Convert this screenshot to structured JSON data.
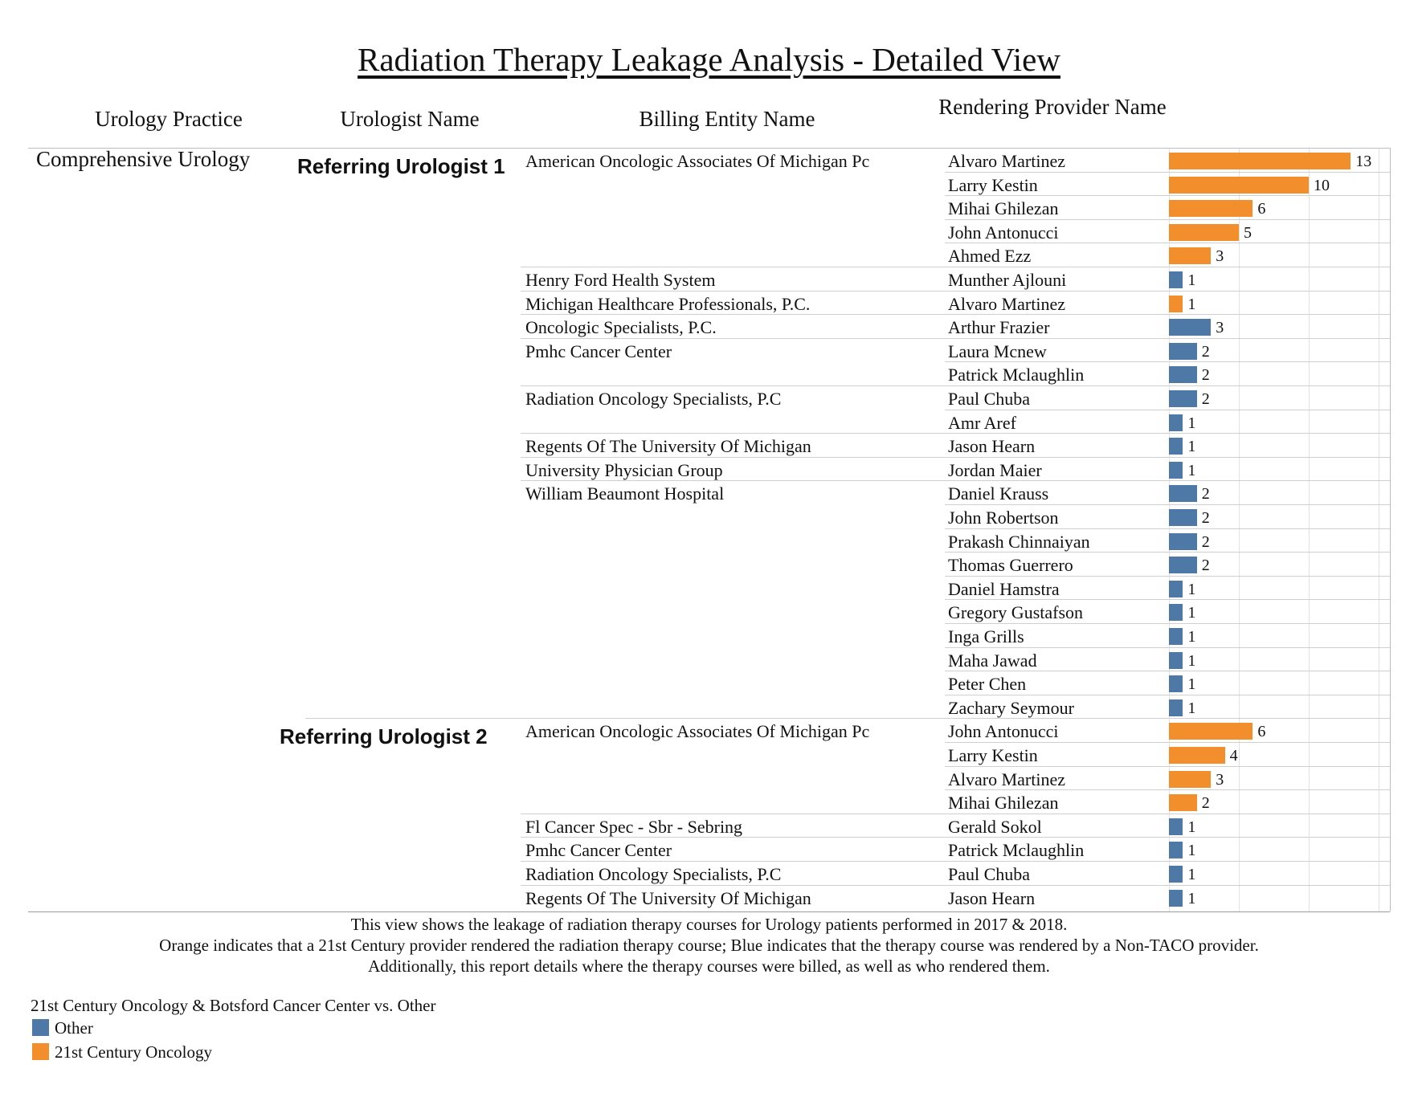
{
  "title": "Radiation Therapy Leakage Analysis - Detailed View",
  "headers": {
    "practice": "Urology Practice",
    "urologist": "Urologist Name",
    "billing": "Billing Entity Name",
    "provider": "Rendering Provider Name"
  },
  "colors": {
    "other": "#4e79a7",
    "century": "#f28e2b"
  },
  "chart_data": {
    "type": "bar",
    "orientation": "horizontal",
    "practice": "Comprehensive Urology",
    "xlim": [
      0,
      16
    ],
    "groups": [
      {
        "urologist": "Referring Urologist 1",
        "entities": [
          {
            "name": "American Oncologic Associates Of Michigan Pc",
            "providers": [
              {
                "name": "Alvaro Martinez",
                "value": 13,
                "category": "21st Century Oncology"
              },
              {
                "name": "Larry Kestin",
                "value": 10,
                "category": "21st Century Oncology"
              },
              {
                "name": "Mihai Ghilezan",
                "value": 6,
                "category": "21st Century Oncology"
              },
              {
                "name": "John Antonucci",
                "value": 5,
                "category": "21st Century Oncology"
              },
              {
                "name": "Ahmed Ezz",
                "value": 3,
                "category": "21st Century Oncology"
              }
            ]
          },
          {
            "name": "Henry Ford Health System",
            "providers": [
              {
                "name": "Munther Ajlouni",
                "value": 1,
                "category": "Other"
              }
            ]
          },
          {
            "name": "Michigan Healthcare Professionals, P.C.",
            "providers": [
              {
                "name": "Alvaro Martinez",
                "value": 1,
                "category": "21st Century Oncology"
              }
            ]
          },
          {
            "name": "Oncologic Specialists, P.C.",
            "providers": [
              {
                "name": "Arthur Frazier",
                "value": 3,
                "category": "Other"
              }
            ]
          },
          {
            "name": "Pmhc Cancer Center",
            "providers": [
              {
                "name": "Laura Mcnew",
                "value": 2,
                "category": "Other"
              },
              {
                "name": "Patrick Mclaughlin",
                "value": 2,
                "category": "Other"
              }
            ]
          },
          {
            "name": "Radiation Oncology Specialists, P.C",
            "providers": [
              {
                "name": "Paul Chuba",
                "value": 2,
                "category": "Other"
              },
              {
                "name": "Amr Aref",
                "value": 1,
                "category": "Other"
              }
            ]
          },
          {
            "name": "Regents Of The University Of Michigan",
            "providers": [
              {
                "name": "Jason Hearn",
                "value": 1,
                "category": "Other"
              }
            ]
          },
          {
            "name": "University Physician Group",
            "providers": [
              {
                "name": "Jordan Maier",
                "value": 1,
                "category": "Other"
              }
            ]
          },
          {
            "name": "William Beaumont Hospital",
            "providers": [
              {
                "name": "Daniel Krauss",
                "value": 2,
                "category": "Other"
              },
              {
                "name": "John Robertson",
                "value": 2,
                "category": "Other"
              },
              {
                "name": "Prakash Chinnaiyan",
                "value": 2,
                "category": "Other"
              },
              {
                "name": "Thomas Guerrero",
                "value": 2,
                "category": "Other"
              },
              {
                "name": "Daniel Hamstra",
                "value": 1,
                "category": "Other"
              },
              {
                "name": "Gregory Gustafson",
                "value": 1,
                "category": "Other"
              },
              {
                "name": "Inga Grills",
                "value": 1,
                "category": "Other"
              },
              {
                "name": "Maha Jawad",
                "value": 1,
                "category": "Other"
              },
              {
                "name": "Peter Chen",
                "value": 1,
                "category": "Other"
              },
              {
                "name": "Zachary Seymour",
                "value": 1,
                "category": "Other"
              }
            ]
          }
        ]
      },
      {
        "urologist": "Referring Urologist 2",
        "entities": [
          {
            "name": "American Oncologic Associates Of Michigan Pc",
            "providers": [
              {
                "name": "John Antonucci",
                "value": 6,
                "category": "21st Century Oncology"
              },
              {
                "name": "Larry Kestin",
                "value": 4,
                "category": "21st Century Oncology"
              },
              {
                "name": "Alvaro Martinez",
                "value": 3,
                "category": "21st Century Oncology"
              },
              {
                "name": "Mihai Ghilezan",
                "value": 2,
                "category": "21st Century Oncology"
              }
            ]
          },
          {
            "name": "Fl Cancer Spec - Sbr - Sebring",
            "providers": [
              {
                "name": "Gerald Sokol",
                "value": 1,
                "category": "Other"
              }
            ]
          },
          {
            "name": "Pmhc Cancer Center",
            "providers": [
              {
                "name": "Patrick Mclaughlin",
                "value": 1,
                "category": "Other"
              }
            ]
          },
          {
            "name": "Radiation Oncology Specialists, P.C",
            "providers": [
              {
                "name": "Paul Chuba",
                "value": 1,
                "category": "Other"
              }
            ]
          },
          {
            "name": "Regents Of The University Of Michigan",
            "providers": [
              {
                "name": "Jason Hearn",
                "value": 1,
                "category": "Other"
              }
            ]
          }
        ]
      }
    ]
  },
  "footer": {
    "line1": "This view shows the leakage of radiation therapy courses for Urology patients performed in 2017 & 2018.",
    "line2": "Orange indicates that a 21st Century provider rendered the radiation therapy course; Blue indicates that the therapy course was rendered by a Non-TACO provider.",
    "line3": "Additionally, this report details where the therapy courses were billed, as well as who rendered them."
  },
  "legend": {
    "title": "21st Century Oncology & Botsford Cancer Center vs. Other",
    "items": [
      {
        "label": "Other",
        "category": "Other"
      },
      {
        "label": "21st Century Oncology",
        "category": "21st Century Oncology"
      }
    ]
  }
}
